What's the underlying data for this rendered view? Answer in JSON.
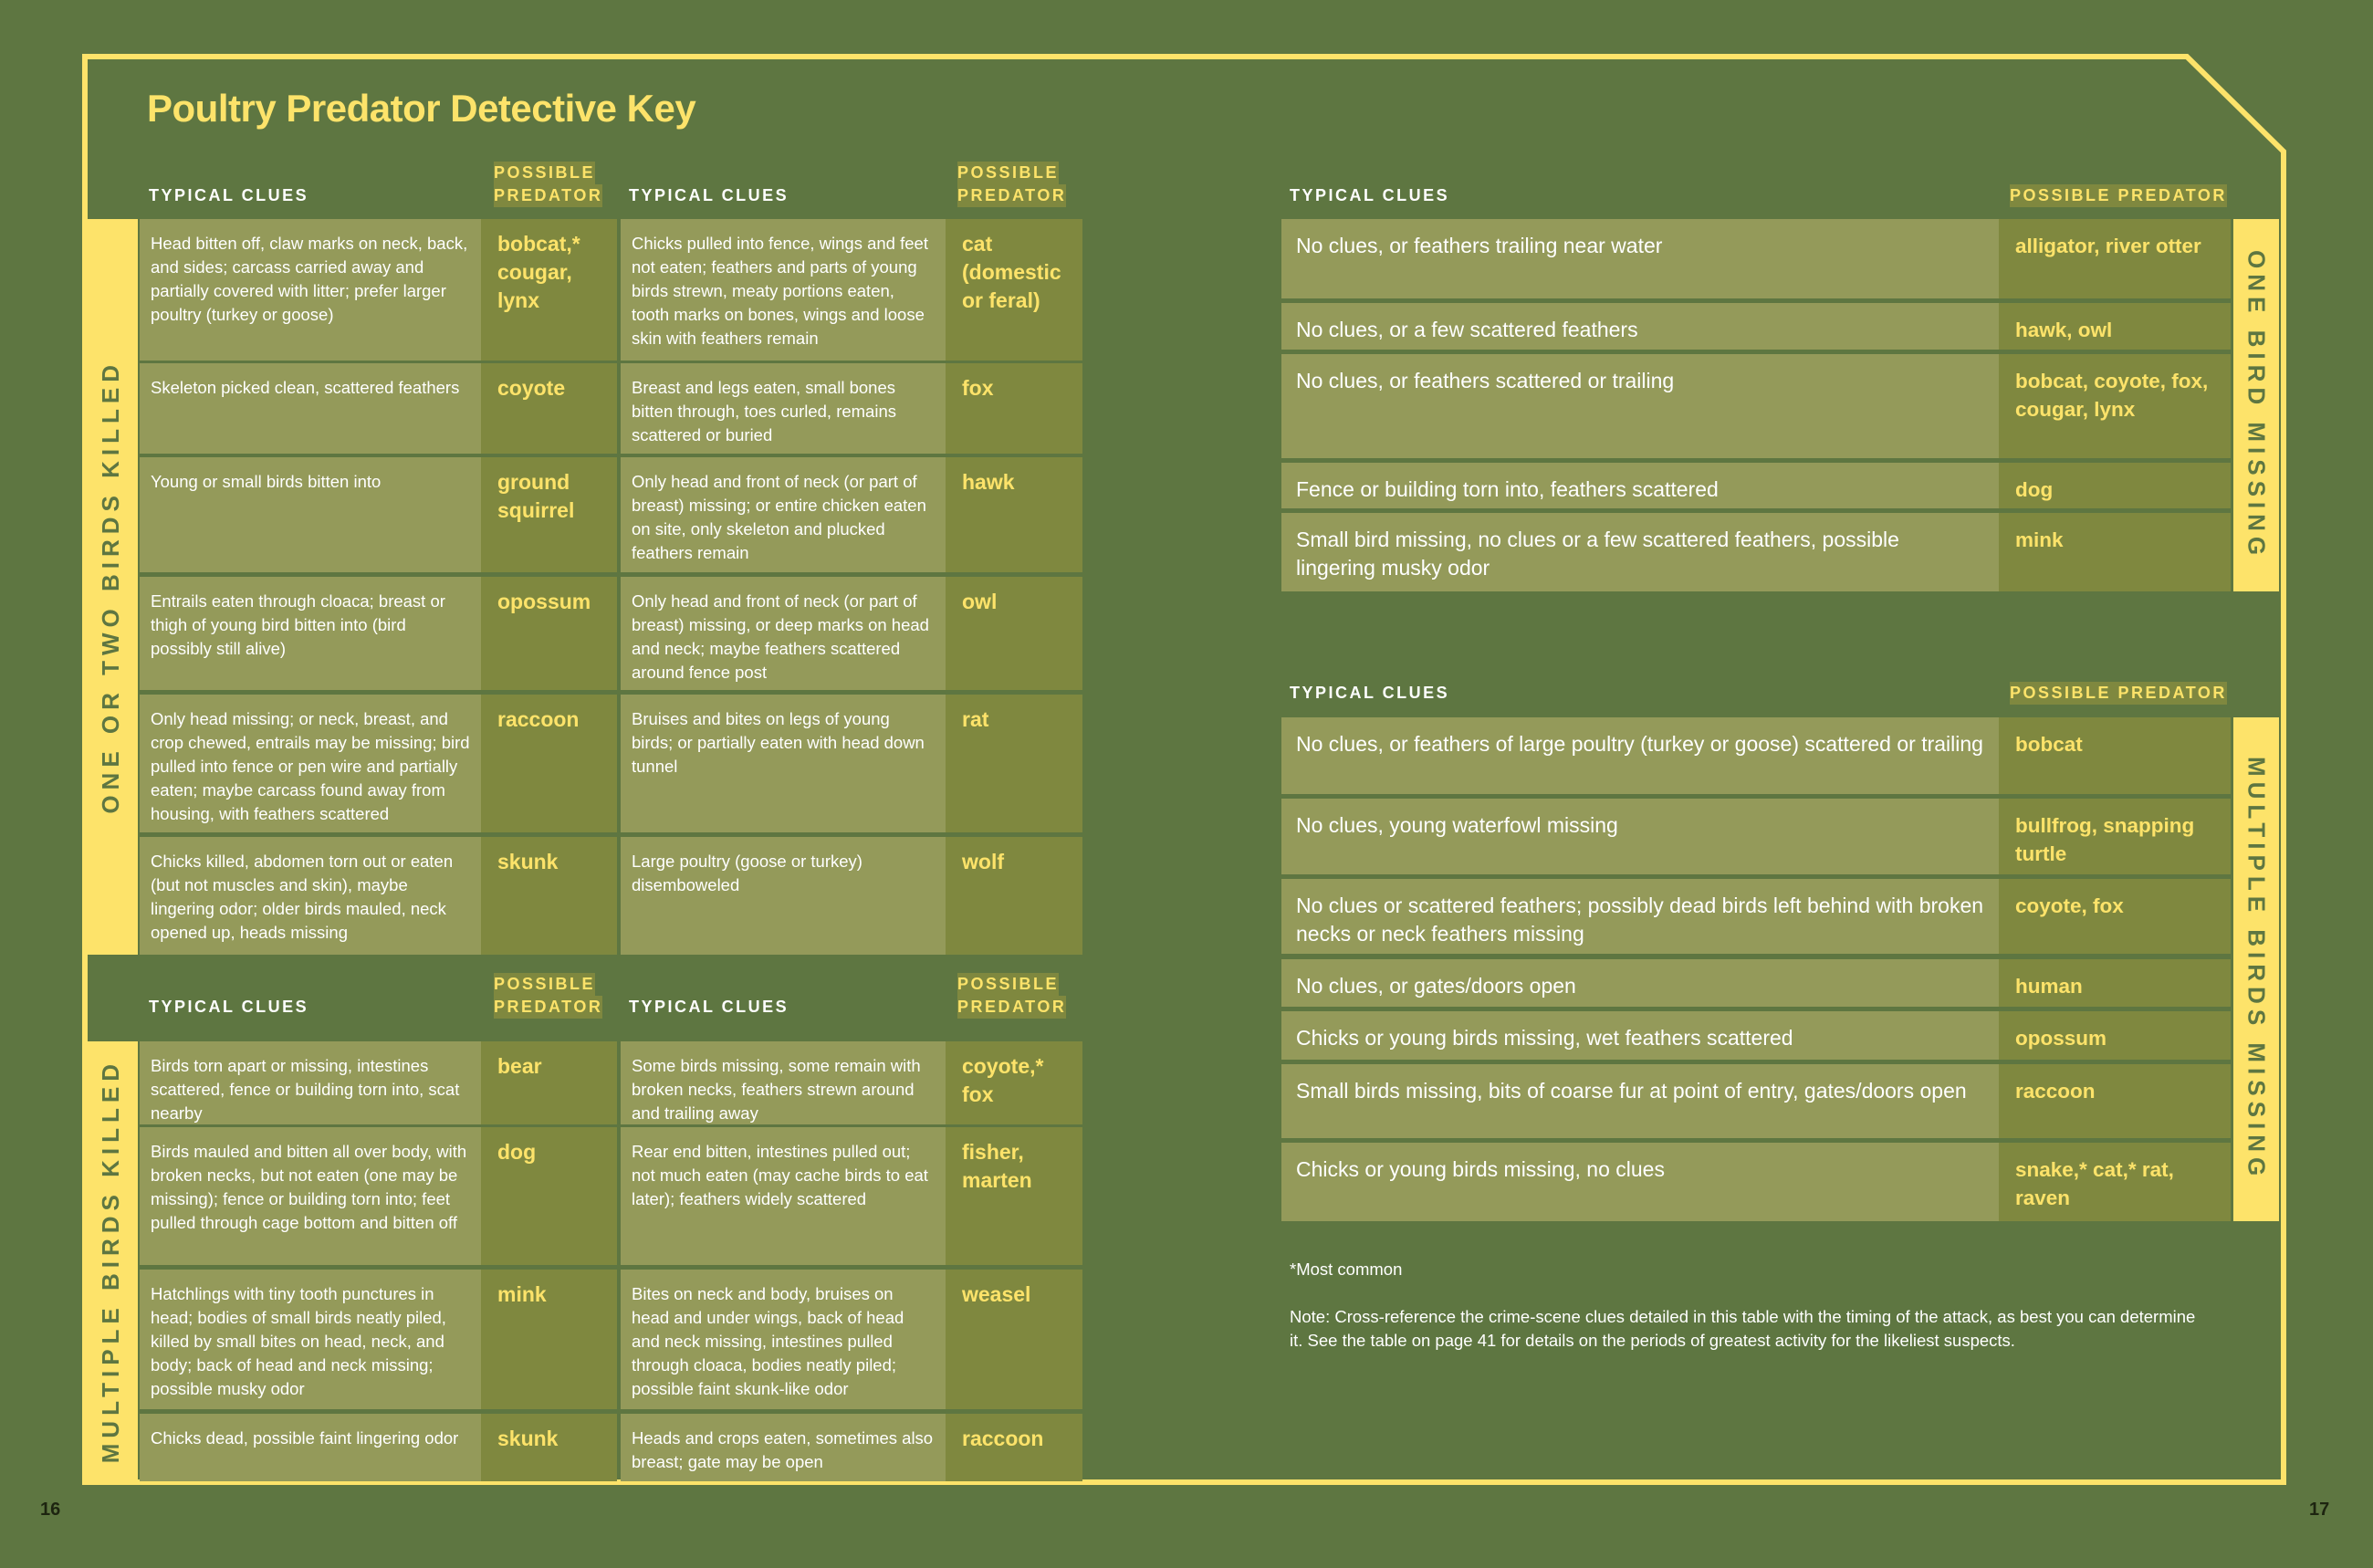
{
  "title": "Poultry Predator Detective Key",
  "colors": {
    "background": "#5e7641",
    "accent": "#fde36a",
    "clue_cell": "#949a5a",
    "predator_cell": "#7f883f"
  },
  "headers": {
    "typical_clues": "TYPICAL CLUES",
    "possible": "POSSIBLE",
    "predator": "PREDATOR",
    "possible_predator": "POSSIBLE PREDATOR"
  },
  "left": {
    "one_or_two": {
      "label": "ONE OR TWO BIRDS KILLED",
      "rows": [
        {
          "clue_a": "Head bitten off, claw marks on neck, back, and sides; carcass carried away and partially covered with litter; prefer larger poultry (turkey or goose)",
          "predator_a": "bobcat,* cougar, lynx",
          "clue_b": "Chicks pulled into fence, wings and feet not eaten; feathers and parts of young birds strewn, meaty portions eaten, tooth marks on bones, wings and loose skin with feathers remain",
          "predator_b": "cat (domestic or feral)"
        },
        {
          "clue_a": "Skeleton picked clean, scattered feathers",
          "predator_a": "coyote",
          "clue_b": "Breast and legs eaten, small bones bitten through, toes curled, remains scattered or buried",
          "predator_b": "fox"
        },
        {
          "clue_a": "Young or small birds bitten into",
          "predator_a": "ground squirrel",
          "clue_b": "Only head and front of neck (or part of breast) missing; or entire chicken eaten on site, only skeleton and plucked feathers remain",
          "predator_b": "hawk"
        },
        {
          "clue_a": "Entrails eaten through cloaca; breast or thigh of young bird bitten into (bird possibly still alive)",
          "predator_a": "opossum",
          "clue_b": "Only head and front of neck (or part of breast) missing, or deep marks on head and neck; maybe feathers scattered around fence post",
          "predator_b": "owl"
        },
        {
          "clue_a": "Only head missing; or neck, breast, and crop chewed, entrails may be missing; bird pulled into fence or pen wire and partially eaten; maybe carcass found away from housing, with feathers scattered",
          "predator_a": "raccoon",
          "clue_b": "Bruises and bites on legs of young birds; or partially eaten with head down tunnel",
          "predator_b": "rat"
        },
        {
          "clue_a": "Chicks killed, abdomen torn out or eaten (but not muscles and skin), maybe lingering odor; older birds mauled, neck opened up, heads missing",
          "predator_a": "skunk",
          "clue_b": "Large poultry (goose or turkey) disemboweled",
          "predator_b": "wolf"
        }
      ]
    },
    "multiple": {
      "label": "MULTIPLE BIRDS KILLED",
      "rows": [
        {
          "clue_a": "Birds torn apart or missing, intestines scattered, fence or building torn into, scat nearby",
          "predator_a": "bear",
          "clue_b": "Some birds missing, some remain with broken necks, feathers strewn around and trailing away",
          "predator_b": "coyote,* fox"
        },
        {
          "clue_a": "Birds mauled and bitten all over body, with broken necks, but not eaten (one may be missing); fence or building torn into; feet pulled through cage bottom and bitten off",
          "predator_a": "dog",
          "clue_b": "Rear end bitten, intestines pulled out; not much eaten (may cache birds to eat later); feathers widely scattered",
          "predator_b": "fisher, marten"
        },
        {
          "clue_a": "Hatchlings with tiny tooth punctures in head; bodies of small birds neatly piled, killed by small bites on head, neck, and body; back of head and neck missing; possible musky odor",
          "predator_a": "mink",
          "clue_b": "Bites on neck and body, bruises on head and under wings, back of head and neck missing, intestines pulled through cloaca, bodies neatly piled; possible faint skunk-like odor",
          "predator_b": "weasel"
        },
        {
          "clue_a": "Chicks dead, possible faint lingering odor",
          "predator_a": "skunk",
          "clue_b": "Heads and crops eaten, sometimes also breast; gate may be open",
          "predator_b": "raccoon"
        }
      ]
    }
  },
  "right": {
    "one_missing": {
      "label": "ONE BIRD MISSING",
      "rows": [
        {
          "clue": "No clues, or feathers trailing near water",
          "predator": "alligator, river otter"
        },
        {
          "clue": "No clues, or a few scattered feathers",
          "predator": "hawk, owl"
        },
        {
          "clue": "No clues, or feathers scattered or trailing",
          "predator": "bobcat, coyote, fox, cougar, lynx"
        },
        {
          "clue": "Fence or building torn into, feathers scattered",
          "predator": "dog"
        },
        {
          "clue": "Small bird missing, no clues or a few scattered feathers, possible lingering musky odor",
          "predator": "mink"
        }
      ]
    },
    "multiple_missing": {
      "label": "MULTIPLE BIRDS MISSING",
      "rows": [
        {
          "clue": "No clues, or feathers of large poultry (turkey or goose) scattered or trailing",
          "predator": "bobcat"
        },
        {
          "clue": "No clues, young waterfowl missing",
          "predator": "bullfrog, snapping turtle"
        },
        {
          "clue": "No clues or scattered feathers; possibly dead birds left behind with broken necks or neck feathers missing",
          "predator": "coyote, fox"
        },
        {
          "clue": "No clues, or gates/doors open",
          "predator": "human"
        },
        {
          "clue": "Chicks or young birds missing, wet feathers scattered",
          "predator": "opossum"
        },
        {
          "clue": "Small birds missing, bits of coarse fur at point of entry, gates/doors open",
          "predator": "raccoon"
        },
        {
          "clue": "Chicks or young birds missing, no clues",
          "predator": "snake,* cat,* rat, raven"
        }
      ]
    }
  },
  "footnote": "*Most common",
  "note": "Note: Cross-reference the crime-scene clues detailed in this table with the timing of the attack, as best you can determine it. See the table on page 41 for details on the periods of greatest activity for the likeliest suspects.",
  "page_numbers": {
    "left": "16",
    "right": "17"
  }
}
